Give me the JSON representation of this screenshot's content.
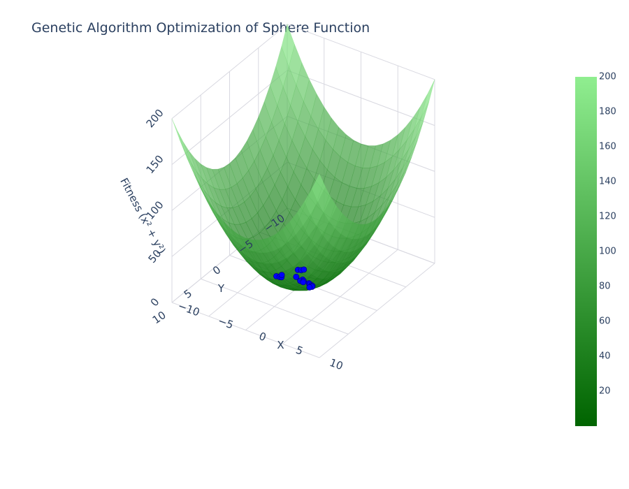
{
  "title": "Genetic Algorithm Optimization of Sphere Function",
  "colors": {
    "surface_low": "#006400",
    "surface_high": "#90ee90",
    "points": "#0000ff",
    "text": "#2a3f5f",
    "grid": "#d8d8e0"
  },
  "chart_data": {
    "type": "surface3d",
    "title": "Genetic Algorithm Optimization of Sphere Function",
    "surface": {
      "function": "x^2 + y^2",
      "x_range": [
        -10,
        10
      ],
      "y_range": [
        -10,
        10
      ],
      "z_range": [
        0,
        200
      ],
      "colorscale": [
        "#006400",
        "#90ee90"
      ],
      "opacity": 0.7
    },
    "axes": {
      "x": {
        "label": "X",
        "ticks": [
          "−10",
          "−5",
          "0",
          "5",
          "10"
        ],
        "tick_values": [
          -10,
          -5,
          0,
          5,
          10
        ]
      },
      "y": {
        "label": "Y",
        "ticks": [
          "−10",
          "−5",
          "0",
          "5",
          "10"
        ],
        "tick_values": [
          -10,
          -5,
          0,
          5,
          10
        ]
      },
      "z": {
        "label": "Fitness (x² + y²)",
        "ticks": [
          "0",
          "50",
          "100",
          "150",
          "200"
        ],
        "tick_values": [
          0,
          50,
          100,
          150,
          200
        ]
      }
    },
    "colorbar": {
      "ticks": [
        "20",
        "40",
        "60",
        "80",
        "100",
        "120",
        "140",
        "160",
        "180",
        "200"
      ],
      "tick_values": [
        20,
        40,
        60,
        80,
        100,
        120,
        140,
        160,
        180,
        200
      ],
      "range": [
        0,
        200
      ]
    },
    "population_points": {
      "marker_color": "#0000ff",
      "points": [
        {
          "x": -2.4,
          "y": 1.6,
          "z": 8.3
        },
        {
          "x": -2.2,
          "y": 1.3,
          "z": 6.5
        },
        {
          "x": -2.1,
          "y": 1.1,
          "z": 5.6
        },
        {
          "x": -2.3,
          "y": 0.8,
          "z": 5.9
        },
        {
          "x": -1.6,
          "y": -1.1,
          "z": 3.8
        },
        {
          "x": -1.3,
          "y": -1.3,
          "z": 3.4
        },
        {
          "x": -1.1,
          "y": -1.5,
          "z": 3.5
        },
        {
          "x": -1.2,
          "y": -0.3,
          "z": 1.5
        },
        {
          "x": -0.4,
          "y": -0.4,
          "z": 0.3
        },
        {
          "x": -0.5,
          "y": -0.1,
          "z": 0.3
        },
        {
          "x": -0.2,
          "y": -0.3,
          "z": 0.1
        },
        {
          "x": -0.1,
          "y": -0.1,
          "z": 0.0
        },
        {
          "x": 0.6,
          "y": -0.2,
          "z": 0.4
        },
        {
          "x": 0.8,
          "y": -0.1,
          "z": 0.7
        },
        {
          "x": 1.2,
          "y": 0.1,
          "z": 1.5
        },
        {
          "x": 1.4,
          "y": 0.2,
          "z": 2.0
        },
        {
          "x": 1.5,
          "y": 0.4,
          "z": 2.4
        },
        {
          "x": 1.3,
          "y": 0.6,
          "z": 2.1
        }
      ]
    }
  }
}
